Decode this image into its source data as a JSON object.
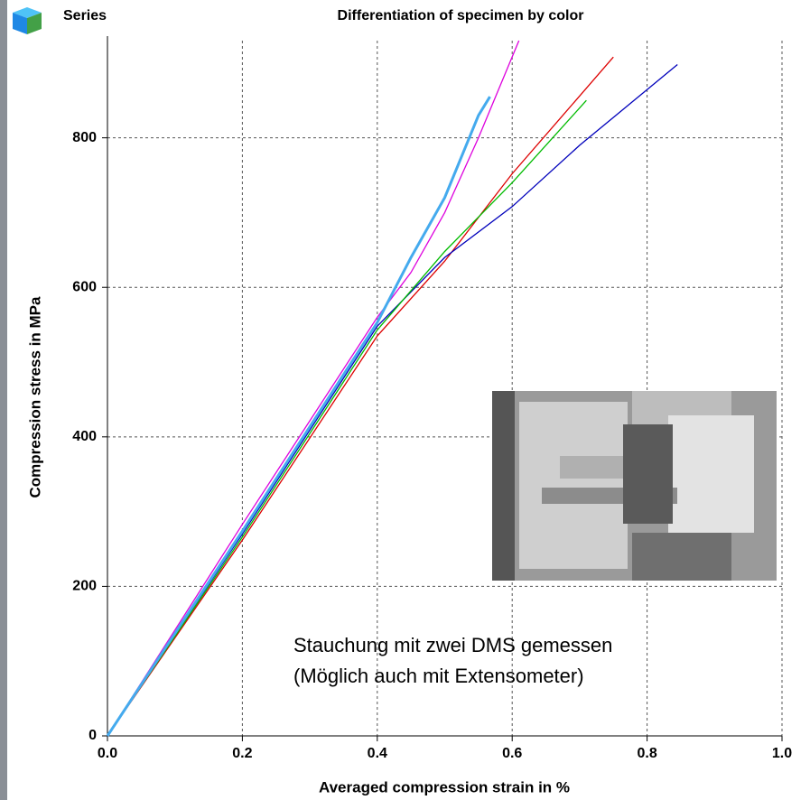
{
  "chart_data": {
    "type": "line",
    "title": "Differentiation of specimen by color",
    "legend_title": "Series",
    "xlabel": "Averaged compression strain in %",
    "ylabel": "Compression stress in MPa",
    "annotation": [
      "Stauchung mit zwei DMS gemessen",
      "(Möglich auch mit Extensometer)"
    ],
    "xlim": [
      0,
      1
    ],
    "ylim": [
      0,
      930
    ],
    "xticks": [
      {
        "value": 0,
        "label": "0.0"
      },
      0.2,
      0.4,
      0.6,
      0.8,
      {
        "value": 1,
        "label": "1.0"
      }
    ],
    "yticks": [
      0,
      200,
      400,
      600,
      800
    ],
    "grid": true,
    "series": [
      {
        "color": "#dd0000",
        "x": [
          0,
          0.2,
          0.4,
          0.5,
          0.6,
          0.75
        ],
        "values": [
          0,
          262,
          535,
          635,
          752,
          908
        ]
      },
      {
        "color": "#0000bb",
        "x": [
          0,
          0.2,
          0.4,
          0.5,
          0.6,
          0.7,
          0.845
        ],
        "values": [
          0,
          270,
          548,
          640,
          708,
          790,
          898
        ]
      },
      {
        "color": "#00bb00",
        "x": [
          0,
          0.2,
          0.4,
          0.5,
          0.6,
          0.71
        ],
        "values": [
          0,
          266,
          543,
          648,
          740,
          850
        ]
      },
      {
        "color": "#dd00dd",
        "x": [
          0,
          0.2,
          0.4,
          0.45,
          0.5,
          0.55,
          0.61
        ],
        "values": [
          0,
          283,
          560,
          620,
          700,
          800,
          930
        ]
      },
      {
        "color": "#44aaee",
        "x": [
          0,
          0.2,
          0.4,
          0.45,
          0.5,
          0.55,
          0.567
        ],
        "values": [
          0,
          274,
          553,
          640,
          720,
          830,
          855
        ]
      }
    ]
  }
}
